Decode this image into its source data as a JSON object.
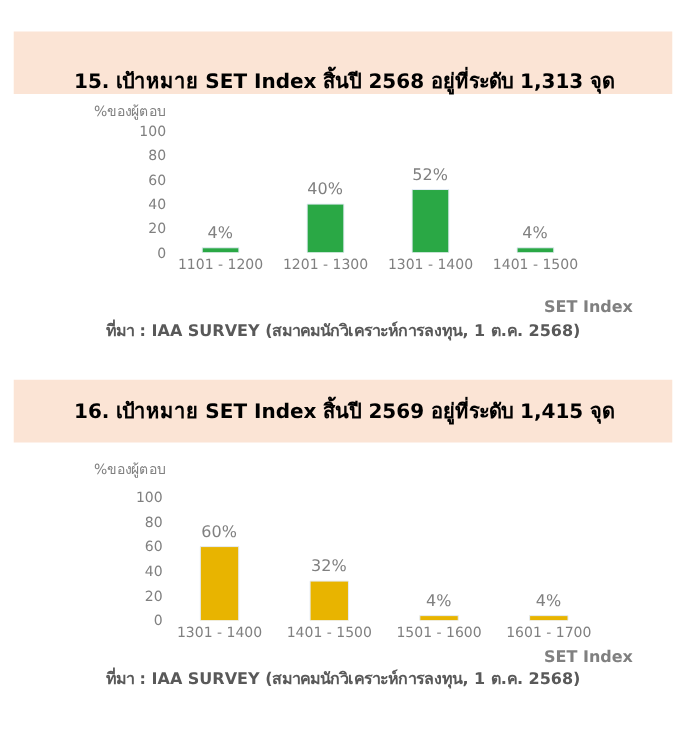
{
  "chart_data": [
    {
      "type": "bar",
      "title": "15. เป้าหมาย SET Index สิ้นปี 2568 อยู่ที่ระดับ 1,313 จุด",
      "xlabel": "SET Index",
      "ylabel": "%ของผู้ตอบ",
      "categories": [
        "1101 - 1200",
        "1201 - 1300",
        "1301 - 1400",
        "1401 - 1500"
      ],
      "values": [
        4,
        40,
        52,
        4
      ],
      "value_labels": [
        "4%",
        "40%",
        "52%",
        "4%"
      ],
      "color": "#2aa845",
      "ylim": [
        0,
        100
      ],
      "yticks": [
        0,
        20,
        40,
        60,
        80,
        100
      ],
      "grid": false,
      "annotations": [
        "ที่มา : IAA SURVEY (สมาคมนักวิเคราะห์การลงทุน, 1 ต.ค. 2568)"
      ]
    },
    {
      "type": "bar",
      "title": "16. เป้าหมาย SET Index สิ้นปี 2569 อยู่ที่ระดับ 1,415 จุด",
      "xlabel": "SET Index",
      "ylabel": "%ของผู้ตอบ",
      "categories": [
        "1301 - 1400",
        "1401 - 1500",
        "1501 - 1600",
        "1601 - 1700"
      ],
      "values": [
        60,
        32,
        4,
        4
      ],
      "value_labels": [
        "60%",
        "32%",
        "4%",
        "4%"
      ],
      "color": "#e8b400",
      "ylim": [
        0,
        100
      ],
      "yticks": [
        0,
        20,
        40,
        60,
        80,
        100
      ],
      "grid": false,
      "annotations": [
        "ที่มา : IAA SURVEY (สมาคมนักวิเคราะห์การลงทุน, 1 ต.ค. 2568)"
      ]
    }
  ]
}
